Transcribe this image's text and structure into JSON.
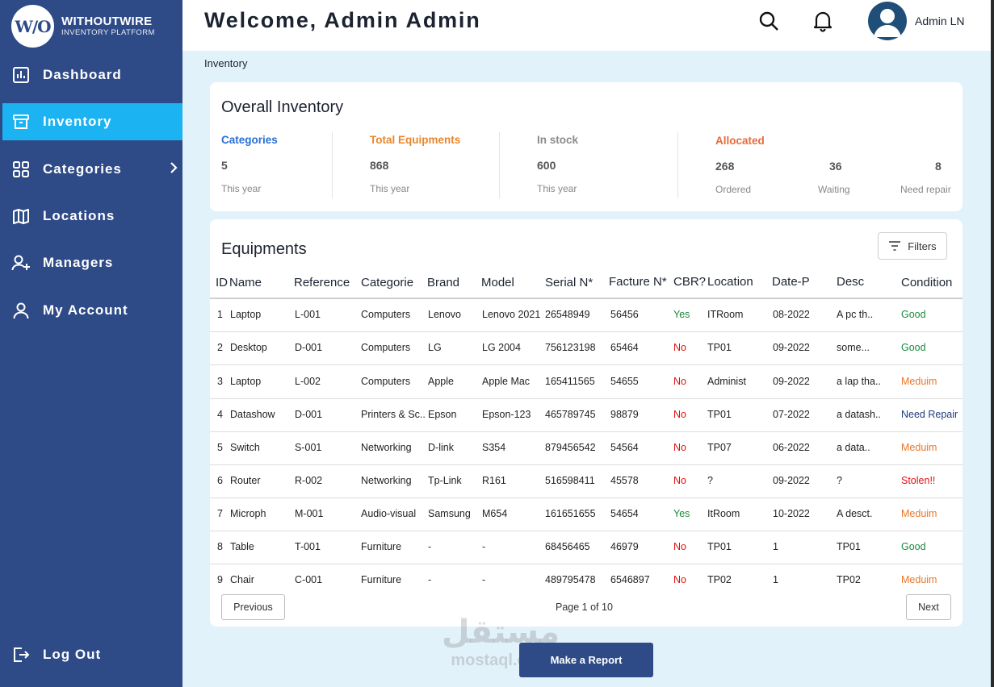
{
  "brand": {
    "logo": "W/O",
    "name": "WITHOUTWIRE",
    "subtitle": "INVENTORY PLATFORM"
  },
  "sidebar": {
    "items": [
      {
        "label": "Dashboard",
        "icon": "dashboard-icon"
      },
      {
        "label": "Inventory",
        "icon": "inventory-icon",
        "active": true
      },
      {
        "label": "Categories",
        "icon": "categories-icon"
      },
      {
        "label": "Locations",
        "icon": "map-icon"
      },
      {
        "label": "Managers",
        "icon": "add-user-icon"
      },
      {
        "label": "My Account",
        "icon": "user-icon"
      }
    ],
    "logout": "Log Out"
  },
  "header": {
    "welcome": "Welcome, Admin Admin",
    "admin_name": "Admin LN"
  },
  "breadcrumb": "Inventory",
  "overview": {
    "title": "Overall Inventory",
    "categories": {
      "label": "Categories",
      "value": "5",
      "sub": "This year"
    },
    "total": {
      "label": "Total Equipments",
      "value": "868",
      "sub": "This year"
    },
    "stock": {
      "label": "In stock",
      "value": "600",
      "sub": "This year"
    },
    "allocated": {
      "label": "Allocated",
      "ordered": {
        "value": "268",
        "sub": "Ordered"
      },
      "waiting": {
        "value": "36",
        "sub": "Waiting"
      },
      "repair": {
        "value": "8",
        "sub": "Need repair"
      }
    }
  },
  "equipments": {
    "title": "Equipments",
    "filters_label": "Filters",
    "columns": [
      "ID",
      "Name",
      "Reference",
      "Categorie",
      "Brand",
      "Model",
      "Serial N*",
      "Facture N*",
      "CBR?",
      "Location",
      "Date-P",
      "Desc",
      "Condition"
    ],
    "rows": [
      [
        "1",
        "Laptop",
        "L-001",
        "Computers",
        "Lenovo",
        "Lenovo 2021",
        "26548949",
        "56456",
        "Yes",
        "ITRoom",
        "08-2022",
        "A pc th..",
        "Good"
      ],
      [
        "2",
        "Desktop",
        "D-001",
        "Computers",
        "LG",
        "LG 2004",
        "756123198",
        "65464",
        "No",
        "TP01",
        "09-2022",
        "some...",
        "Good"
      ],
      [
        "3",
        "Laptop",
        "L-002",
        "Computers",
        "Apple",
        "Apple Mac",
        "165411565",
        "54655",
        "No",
        "Administ",
        "09-2022",
        "a lap tha..",
        "Meduim"
      ],
      [
        "4",
        "Datashow",
        "D-001",
        "Printers & Sc..",
        "Epson",
        "Epson-123",
        "465789745",
        "98879",
        "No",
        "TP01",
        "07-2022",
        "a datash..",
        "Need Repair"
      ],
      [
        "5",
        "Switch",
        "S-001",
        "Networking",
        "D-link",
        "S354",
        "879456542",
        "54564",
        "No",
        "TP07",
        "06-2022",
        "a data..",
        "Meduim"
      ],
      [
        "6",
        "Router",
        "R-002",
        "Networking",
        "Tp-Link",
        "R161",
        "516598411",
        "45578",
        "No",
        "?",
        "09-2022",
        "?",
        "Stolen!!"
      ],
      [
        "7",
        "Microph",
        "M-001",
        "Audio-visual",
        "Samsung",
        "M654",
        "161651655",
        "54654",
        "Yes",
        "ItRoom",
        "10-2022",
        "A desct.",
        "Meduim"
      ],
      [
        "8",
        "Table",
        "T-001",
        "Furniture",
        "-",
        "-",
        "68456465",
        "46979",
        "No",
        "TP01",
        "1",
        "TP01",
        "Good"
      ],
      [
        "9",
        "Chair",
        "C-001",
        "Furniture",
        "-",
        "-",
        "489795478",
        "6546897",
        "No",
        "TP02",
        "1",
        "TP02",
        "Meduim"
      ]
    ],
    "previous": "Previous",
    "next": "Next",
    "page_info": "Page 1 of 10"
  },
  "report_button": "Make a Report",
  "watermark": {
    "arabic": "مستقل",
    "latin": "mostaql.com"
  },
  "colors": {
    "sidebar": "#2e4b87",
    "active": "#1bb3f1",
    "background": "#e2f2fb",
    "good": "#1a8a3c",
    "medium": "#e8782a",
    "bad": "#e01010",
    "repair": "#1f3d7a"
  }
}
